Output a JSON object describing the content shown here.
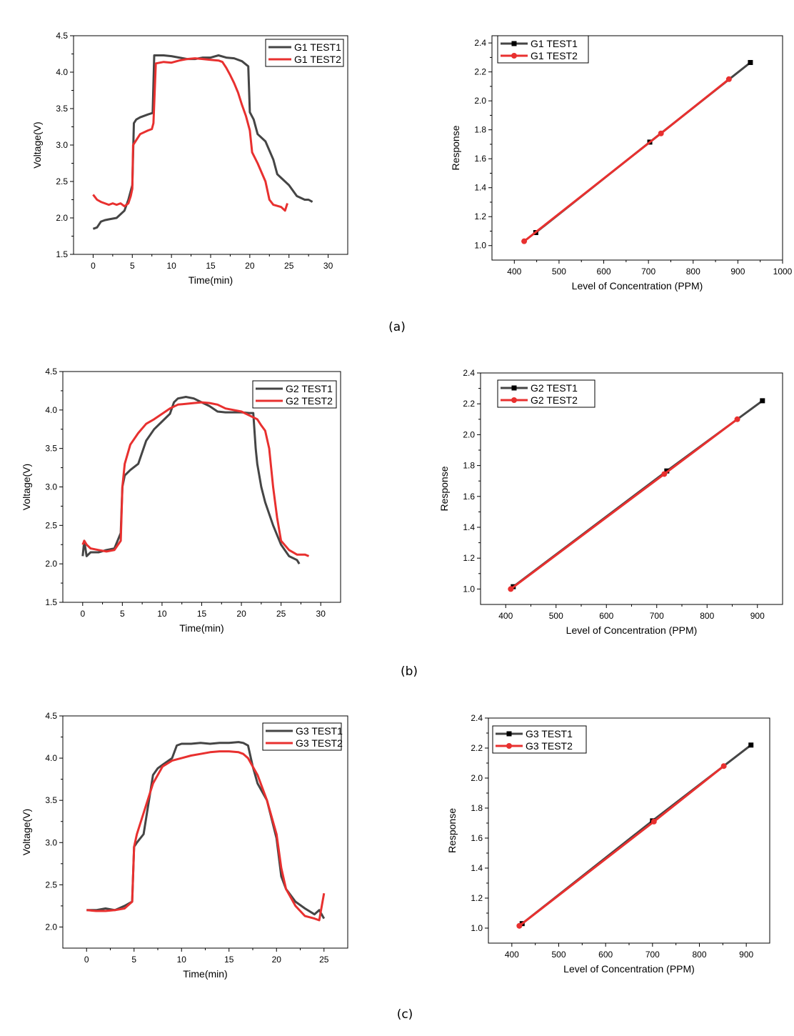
{
  "panel_labels": [
    "(a)",
    "(b)",
    "(c)"
  ],
  "colors": {
    "test1": "#454545",
    "test2": "#e8302f",
    "axis": "#000000"
  },
  "chart_data": [
    {
      "id": "a-voltage",
      "type": "line",
      "xlabel": "Time(min)",
      "ylabel": "Voltage(V)",
      "xlim": [
        -2.5,
        32.5
      ],
      "ylim": [
        1.5,
        4.5
      ],
      "xticks": [
        0,
        5,
        10,
        15,
        20,
        25,
        30
      ],
      "yticks": [
        1.5,
        2.0,
        2.5,
        3.0,
        3.5,
        4.0,
        4.5
      ],
      "xtick_labels": [
        "0",
        "5",
        "10",
        "15",
        "20",
        "25",
        "30"
      ],
      "ytick_labels": [
        "1.5",
        "2.0",
        "2.5",
        "3.0",
        "3.5",
        "4.0",
        "4.5"
      ],
      "legend_position": "top-right",
      "series": [
        {
          "name": "G1 TEST1",
          "color": "#454545",
          "x": [
            0,
            0.5,
            1,
            1.5,
            2,
            3,
            4,
            4.5,
            5,
            5.2,
            5.5,
            6,
            7,
            7.6,
            7.8,
            8,
            9,
            10,
            11,
            12,
            13,
            14,
            15,
            16,
            17,
            18,
            19,
            19.8,
            20,
            20.5,
            21,
            22,
            23,
            23.5,
            24,
            25,
            26,
            27,
            27.5,
            28
          ],
          "y": [
            1.85,
            1.87,
            1.95,
            1.97,
            1.98,
            2.0,
            2.1,
            2.25,
            2.45,
            3.3,
            3.35,
            3.38,
            3.42,
            3.44,
            4.23,
            4.23,
            4.23,
            4.22,
            4.2,
            4.18,
            4.18,
            4.2,
            4.2,
            4.23,
            4.2,
            4.19,
            4.15,
            4.08,
            3.45,
            3.35,
            3.15,
            3.05,
            2.8,
            2.6,
            2.55,
            2.45,
            2.3,
            2.25,
            2.25,
            2.22
          ]
        },
        {
          "name": "G1 TEST2",
          "color": "#e8302f",
          "x": [
            0,
            0.5,
            1,
            1.5,
            2,
            2.5,
            3,
            3.5,
            4,
            4.5,
            4.8,
            5,
            5.1,
            6,
            7,
            7.5,
            7.7,
            8,
            9,
            10,
            11,
            12,
            13,
            14,
            15,
            16,
            16.5,
            17,
            17.5,
            18,
            18.5,
            19,
            19.5,
            20,
            20.3,
            21,
            22,
            22.5,
            23,
            24,
            24.5,
            24.8
          ],
          "y": [
            2.32,
            2.25,
            2.22,
            2.2,
            2.18,
            2.2,
            2.18,
            2.2,
            2.16,
            2.2,
            2.3,
            2.4,
            3.0,
            3.15,
            3.2,
            3.22,
            3.3,
            4.12,
            4.14,
            4.13,
            4.16,
            4.18,
            4.19,
            4.18,
            4.17,
            4.16,
            4.14,
            4.06,
            3.96,
            3.85,
            3.72,
            3.55,
            3.4,
            3.2,
            2.9,
            2.75,
            2.5,
            2.25,
            2.18,
            2.15,
            2.1,
            2.2
          ]
        }
      ]
    },
    {
      "id": "a-response",
      "type": "line",
      "xlabel": "Level of Concentration (PPM)",
      "ylabel": "Response",
      "xlim": [
        350,
        1000
      ],
      "ylim": [
        0.9,
        2.45
      ],
      "xticks": [
        400,
        500,
        600,
        700,
        800,
        900,
        1000
      ],
      "yticks": [
        1.0,
        1.2,
        1.4,
        1.6,
        1.8,
        2.0,
        2.2,
        2.4
      ],
      "xtick_labels": [
        "400",
        "500",
        "600",
        "700",
        "800",
        "900",
        "1000"
      ],
      "ytick_labels": [
        "1.0",
        "1.2",
        "1.4",
        "1.6",
        "1.8",
        "2.0",
        "2.2",
        "2.4"
      ],
      "legend_position": "top-left",
      "series": [
        {
          "name": "G1 TEST1",
          "color": "#454545",
          "marker": "square",
          "x": [
            448,
            703,
            928
          ],
          "y": [
            1.09,
            1.715,
            2.265
          ]
        },
        {
          "name": "G1 TEST2",
          "color": "#e8302f",
          "marker": "circle",
          "x": [
            422,
            728,
            880
          ],
          "y": [
            1.03,
            1.775,
            2.15
          ]
        }
      ]
    },
    {
      "id": "b-voltage",
      "type": "line",
      "xlabel": "Time(min)",
      "ylabel": "Voltage(V)",
      "xlim": [
        -2.5,
        32.5
      ],
      "ylim": [
        1.5,
        4.5
      ],
      "xticks": [
        0,
        5,
        10,
        15,
        20,
        25,
        30
      ],
      "yticks": [
        1.5,
        2.0,
        2.5,
        3.0,
        3.5,
        4.0,
        4.5
      ],
      "xtick_labels": [
        "0",
        "5",
        "10",
        "15",
        "20",
        "25",
        "30"
      ],
      "ytick_labels": [
        "1.5",
        "2.0",
        "2.5",
        "3.0",
        "3.5",
        "4.0",
        "4.5"
      ],
      "legend_position": "top-right",
      "series": [
        {
          "name": "G2 TEST1",
          "color": "#454545",
          "x": [
            0,
            0.2,
            0.5,
            1,
            2,
            3,
            4,
            4.8,
            5,
            5.3,
            6,
            7,
            8,
            9,
            10,
            11,
            11.5,
            12,
            13,
            14,
            15,
            16,
            17,
            18,
            19,
            20,
            21,
            21.5,
            21.8,
            22,
            22.5,
            23,
            24,
            25,
            26,
            27,
            27.3
          ],
          "y": [
            2.1,
            2.3,
            2.1,
            2.15,
            2.15,
            2.18,
            2.2,
            2.4,
            3.0,
            3.15,
            3.22,
            3.3,
            3.6,
            3.75,
            3.85,
            3.95,
            4.1,
            4.15,
            4.17,
            4.15,
            4.1,
            4.05,
            3.98,
            3.97,
            3.97,
            3.97,
            3.96,
            3.96,
            3.5,
            3.3,
            3.0,
            2.8,
            2.5,
            2.25,
            2.1,
            2.05,
            2.0
          ]
        },
        {
          "name": "G2 TEST2",
          "color": "#e8302f",
          "x": [
            0,
            0.2,
            0.5,
            1,
            2,
            3,
            4,
            4.8,
            5,
            5.3,
            6,
            7,
            8,
            9,
            10,
            11,
            12,
            13,
            14,
            15,
            16,
            17,
            18,
            19,
            20,
            21,
            22,
            22.5,
            23,
            23.5,
            24,
            24.5,
            25,
            26,
            27,
            28,
            28.5
          ],
          "y": [
            2.25,
            2.3,
            2.25,
            2.2,
            2.18,
            2.16,
            2.18,
            2.3,
            3.0,
            3.3,
            3.55,
            3.7,
            3.82,
            3.88,
            3.95,
            4.02,
            4.07,
            4.08,
            4.09,
            4.1,
            4.09,
            4.07,
            4.02,
            4.0,
            3.98,
            3.93,
            3.88,
            3.8,
            3.73,
            3.5,
            3.0,
            2.6,
            2.3,
            2.18,
            2.12,
            2.12,
            2.1
          ]
        }
      ]
    },
    {
      "id": "b-response",
      "type": "line",
      "xlabel": "Level of Concentration (PPM)",
      "ylabel": "Response",
      "xlim": [
        350,
        950
      ],
      "ylim": [
        0.9,
        2.4
      ],
      "xticks": [
        400,
        500,
        600,
        700,
        800,
        900
      ],
      "yticks": [
        1.0,
        1.2,
        1.4,
        1.6,
        1.8,
        2.0,
        2.2,
        2.4
      ],
      "xtick_labels": [
        "400",
        "500",
        "600",
        "700",
        "800",
        "900"
      ],
      "ytick_labels": [
        "1.0",
        "1.2",
        "1.4",
        "1.6",
        "1.8",
        "2.0",
        "2.2",
        "2.4"
      ],
      "legend_position": "top-left",
      "series": [
        {
          "name": "G2 TEST1",
          "color": "#454545",
          "marker": "square",
          "x": [
            415,
            720,
            910
          ],
          "y": [
            1.015,
            1.765,
            2.22
          ]
        },
        {
          "name": "G2 TEST2",
          "color": "#e8302f",
          "marker": "circle",
          "x": [
            410,
            715,
            860
          ],
          "y": [
            1.0,
            1.745,
            2.1
          ]
        }
      ]
    },
    {
      "id": "c-voltage",
      "type": "line",
      "xlabel": "Time(min)",
      "ylabel": "Voltage(V)",
      "xlim": [
        -2.5,
        27.5
      ],
      "ylim": [
        1.75,
        4.5
      ],
      "xticks": [
        0,
        5,
        10,
        15,
        20,
        25
      ],
      "yticks": [
        2.0,
        2.5,
        3.0,
        3.5,
        4.0,
        4.5
      ],
      "xtick_labels": [
        "0",
        "5",
        "10",
        "15",
        "20",
        "25"
      ],
      "ytick_labels": [
        "2.0",
        "2.5",
        "3.0",
        "3.5",
        "4.0",
        "4.5"
      ],
      "legend_position": "top-right",
      "series": [
        {
          "name": "G3 TEST1",
          "color": "#454545",
          "x": [
            0,
            1,
            2,
            3,
            4,
            4.8,
            5,
            5.3,
            6,
            6.5,
            7,
            7.5,
            8,
            9,
            9.5,
            10,
            11,
            12,
            13,
            14,
            15,
            16,
            16.5,
            17,
            17.5,
            18,
            19,
            20,
            20.5,
            21,
            22,
            23,
            24,
            24.5,
            25
          ],
          "y": [
            2.2,
            2.2,
            2.22,
            2.2,
            2.25,
            2.3,
            2.95,
            3.0,
            3.1,
            3.45,
            3.8,
            3.88,
            3.92,
            4.0,
            4.15,
            4.17,
            4.17,
            4.18,
            4.17,
            4.18,
            4.18,
            4.19,
            4.18,
            4.15,
            3.9,
            3.7,
            3.5,
            3.05,
            2.6,
            2.45,
            2.3,
            2.22,
            2.15,
            2.2,
            2.1
          ]
        },
        {
          "name": "G3 TEST2",
          "color": "#e8302f",
          "x": [
            0,
            1,
            2,
            3,
            4,
            4.8,
            5,
            5.3,
            6,
            7,
            8,
            9,
            10,
            11,
            12,
            13,
            14,
            15,
            16,
            16.5,
            17,
            17.5,
            18,
            19,
            20,
            20.5,
            21,
            22,
            23,
            24,
            24.5,
            25
          ],
          "y": [
            2.2,
            2.19,
            2.19,
            2.2,
            2.22,
            2.3,
            2.95,
            3.1,
            3.35,
            3.7,
            3.9,
            3.97,
            4.0,
            4.03,
            4.05,
            4.07,
            4.08,
            4.08,
            4.07,
            4.05,
            4.0,
            3.9,
            3.8,
            3.5,
            3.1,
            2.7,
            2.45,
            2.25,
            2.13,
            2.1,
            2.08,
            2.4
          ]
        }
      ]
    },
    {
      "id": "c-response",
      "type": "line",
      "xlabel": "Level of Concentration (PPM)",
      "ylabel": "Response",
      "xlim": [
        350,
        950
      ],
      "ylim": [
        0.9,
        2.4
      ],
      "xticks": [
        400,
        500,
        600,
        700,
        800,
        900
      ],
      "yticks": [
        1.0,
        1.2,
        1.4,
        1.6,
        1.8,
        2.0,
        2.2,
        2.4
      ],
      "xtick_labels": [
        "400",
        "500",
        "600",
        "700",
        "800",
        "900"
      ],
      "ytick_labels": [
        "1.0",
        "1.2",
        "1.4",
        "1.6",
        "1.8",
        "2.0",
        "2.2",
        "2.4"
      ],
      "legend_position": "top-left",
      "series": [
        {
          "name": "G3 TEST1",
          "color": "#454545",
          "marker": "square",
          "x": [
            422,
            700,
            910
          ],
          "y": [
            1.03,
            1.715,
            2.22
          ]
        },
        {
          "name": "G3 TEST2",
          "color": "#e8302f",
          "marker": "circle",
          "x": [
            416,
            703,
            852
          ],
          "y": [
            1.015,
            1.71,
            2.08
          ]
        }
      ]
    }
  ]
}
